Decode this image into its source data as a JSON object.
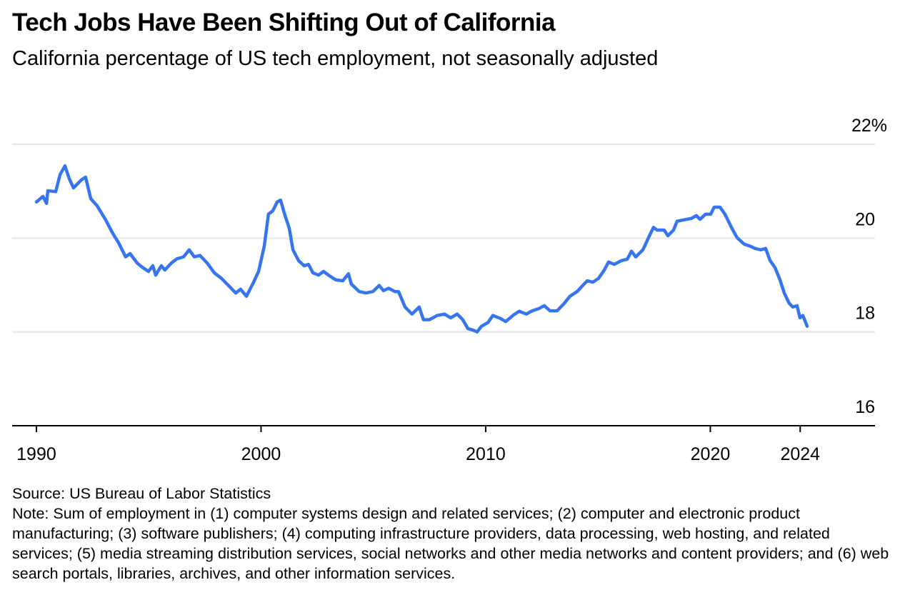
{
  "chart_data": {
    "type": "line",
    "title": "Tech Jobs Have Been Shifting Out of California",
    "subtitle": "California percentage of US tech employment, not seasonally adjusted",
    "source": "Source: US Bureau of Labor Statistics",
    "note": "Note: Sum of employment in (1) computer systems design and related services; (2) computer and electronic product manufacturing; (3) software publishers; (4) computing infrastructure providers, data processing, web hosting, and related services; (5) media streaming distribution services, social networks and other media networks and content providers; and (6) web search portals, libraries, archives, and other information services.",
    "color": "#3575f0",
    "grid": true,
    "xlim": [
      1988.92,
      2027.33
    ],
    "xticks": [
      1990,
      2000,
      2010,
      2020,
      2024
    ],
    "ylim": [
      16,
      22
    ],
    "yticks": [
      16,
      18,
      20,
      {
        "value": 22,
        "label": "22%"
      }
    ],
    "x": [
      1990.0,
      1990.29,
      1990.45,
      1990.51,
      1990.86,
      1991.05,
      1991.27,
      1991.46,
      1991.65,
      1992.0,
      1992.19,
      1992.42,
      1992.7,
      1993.08,
      1993.4,
      1993.66,
      1993.97,
      1994.17,
      1994.48,
      1994.74,
      1994.99,
      1995.18,
      1995.31,
      1995.56,
      1995.72,
      1996.01,
      1996.26,
      1996.55,
      1996.8,
      1997.03,
      1997.28,
      1997.6,
      1997.92,
      1998.24,
      1998.55,
      1998.87,
      1999.09,
      1999.35,
      1999.67,
      1999.89,
      2000.14,
      2000.33,
      2000.52,
      2000.72,
      2000.87,
      2001.03,
      2001.26,
      2001.42,
      2001.67,
      2001.92,
      2002.11,
      2002.31,
      2002.56,
      2002.78,
      2003.0,
      2003.32,
      2003.64,
      2003.89,
      2004.02,
      2004.37,
      2004.66,
      2004.98,
      2005.26,
      2005.45,
      2005.68,
      2005.96,
      2006.12,
      2006.41,
      2006.72,
      2007.04,
      2007.23,
      2007.49,
      2007.84,
      2008.16,
      2008.44,
      2008.73,
      2008.98,
      2009.21,
      2009.43,
      2009.62,
      2009.81,
      2010.1,
      2010.32,
      2010.64,
      2010.89,
      2011.21,
      2011.49,
      2011.81,
      2012.07,
      2012.38,
      2012.61,
      2012.86,
      2013.18,
      2013.5,
      2013.75,
      2014.07,
      2014.32,
      2014.52,
      2014.77,
      2015.02,
      2015.28,
      2015.47,
      2015.72,
      2016.04,
      2016.3,
      2016.49,
      2016.68,
      2017.0,
      2017.25,
      2017.47,
      2017.63,
      2017.95,
      2018.11,
      2018.36,
      2018.52,
      2018.84,
      2019.16,
      2019.38,
      2019.54,
      2019.79,
      2020.02,
      2020.17,
      2020.43,
      2020.65,
      2020.97,
      2021.19,
      2021.51,
      2021.76,
      2021.99,
      2022.24,
      2022.46,
      2022.66,
      2022.88,
      2023.1,
      2023.29,
      2023.51,
      2023.67,
      2023.86,
      2023.99,
      2024.12,
      2024.31
    ],
    "values": [
      20.77,
      20.89,
      20.74,
      21.01,
      20.99,
      21.35,
      21.54,
      21.27,
      21.07,
      21.24,
      21.3,
      20.84,
      20.69,
      20.39,
      20.1,
      19.9,
      19.6,
      19.67,
      19.47,
      19.37,
      19.29,
      19.41,
      19.21,
      19.41,
      19.32,
      19.47,
      19.56,
      19.6,
      19.75,
      19.6,
      19.63,
      19.47,
      19.26,
      19.14,
      18.99,
      18.83,
      18.91,
      18.76,
      19.06,
      19.29,
      19.82,
      20.51,
      20.58,
      20.77,
      20.81,
      20.54,
      20.2,
      19.75,
      19.52,
      19.41,
      19.44,
      19.26,
      19.21,
      19.29,
      19.21,
      19.11,
      19.09,
      19.24,
      19.02,
      18.86,
      18.83,
      18.86,
      18.99,
      18.88,
      18.93,
      18.86,
      18.86,
      18.53,
      18.38,
      18.53,
      18.26,
      18.26,
      18.35,
      18.38,
      18.3,
      18.38,
      18.26,
      18.07,
      18.04,
      18.0,
      18.12,
      18.2,
      18.35,
      18.29,
      18.22,
      18.35,
      18.44,
      18.38,
      18.45,
      18.5,
      18.56,
      18.45,
      18.45,
      18.61,
      18.76,
      18.86,
      18.99,
      19.09,
      19.06,
      19.14,
      19.32,
      19.49,
      19.44,
      19.52,
      19.55,
      19.72,
      19.6,
      19.75,
      20.01,
      20.23,
      20.17,
      20.17,
      20.05,
      20.17,
      20.36,
      20.39,
      20.42,
      20.48,
      20.4,
      20.51,
      20.51,
      20.66,
      20.66,
      20.51,
      20.2,
      20.01,
      19.87,
      19.83,
      19.78,
      19.75,
      19.78,
      19.52,
      19.37,
      19.11,
      18.83,
      18.61,
      18.53,
      18.56,
      18.3,
      18.35,
      18.12
    ]
  }
}
